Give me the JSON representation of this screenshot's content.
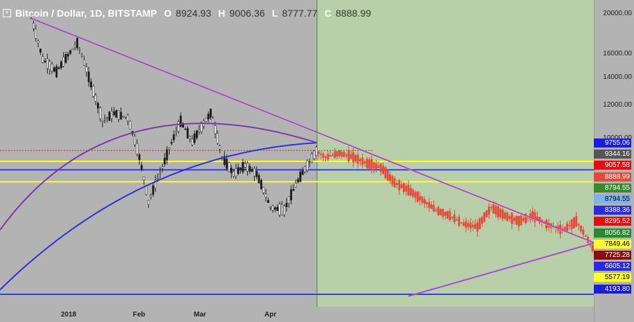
{
  "header": {
    "symbol": "Bitcoin / Dollar, 1D, BITSTAMP",
    "open_label": "O",
    "open": "8924.93",
    "high_label": "H",
    "high": "9006.36",
    "low_label": "L",
    "low": "8777.77",
    "close_label": "C",
    "close": "8888.99"
  },
  "colors": {
    "background": "#b3b3b3",
    "projection_zone": "#b9cfaa",
    "candle": "#e34a3a",
    "yellow": "#ffff33",
    "blue": "#3a3af0",
    "purple": "#a64bd8"
  },
  "chart_data": {
    "type": "line",
    "title": "Bitcoin / Dollar, 1D, BITSTAMP",
    "yscale": "log",
    "ylim": [
      4000,
      22000
    ],
    "x_ticks": [
      "2018",
      "Feb",
      "Mar",
      "Apr"
    ],
    "y_ticks": [
      20000,
      16000,
      14000,
      12000,
      10000
    ],
    "series": [
      {
        "name": "BTCUSD",
        "x": [
          "2017-12-17",
          "2017-12-22",
          "2017-12-28",
          "2018-01-06",
          "2018-01-12",
          "2018-01-17",
          "2018-01-22",
          "2018-01-28",
          "2018-02-02",
          "2018-02-06",
          "2018-02-12",
          "2018-02-20",
          "2018-02-25",
          "2018-03-05",
          "2018-03-10",
          "2018-03-15",
          "2018-03-20",
          "2018-03-25",
          "2018-03-31",
          "2018-04-06",
          "2018-04-12",
          "2018-04-16",
          "2018-04-20",
          "2018-04-24",
          "2018-04-30",
          "2018-05-06",
          "2018-05-12",
          "2018-05-18",
          "2018-05-24",
          "2018-05-30",
          "2018-06-05",
          "2018-06-11",
          "2018-06-17",
          "2018-06-23",
          "2018-06-29",
          "2018-07-05",
          "2018-07-11",
          "2018-07-17",
          "2018-07-23",
          "2018-07-29",
          "2018-08-05",
          "2018-08-11",
          "2018-08-15",
          "2018-08-19",
          "2018-08-24",
          "2018-08-27"
        ],
        "y": [
          19500,
          15500,
          14500,
          17000,
          13500,
          11000,
          11500,
          11200,
          9000,
          7000,
          8500,
          11000,
          9800,
          11500,
          9000,
          8200,
          8600,
          8200,
          6800,
          6700,
          7900,
          8600,
          9300,
          9000,
          9200,
          9000,
          8700,
          8500,
          7800,
          7500,
          7100,
          6700,
          6500,
          6200,
          6100,
          6800,
          6500,
          6300,
          6500,
          6200,
          6000,
          6300,
          5800,
          5300,
          6600,
          5400
        ]
      }
    ],
    "price_labels": [
      {
        "value": "9755.06",
        "bg": "#1c1cdc",
        "fg": "#ffffff"
      },
      {
        "value": "9344.16",
        "bg": "#555555",
        "fg": "#ffffff"
      },
      {
        "value": "9057.58",
        "bg": "#e01010",
        "fg": "#ffffff"
      },
      {
        "value": "8888.99",
        "bg": "#e34a3a",
        "fg": "#ffffff"
      },
      {
        "value": "8794.55",
        "bg": "#3a8a2a",
        "fg": "#ffffff"
      },
      {
        "value": "8794.55",
        "bg": "#7fb3e8",
        "fg": "#000000"
      },
      {
        "value": "8388.36",
        "bg": "#2a2ae0",
        "fg": "#ffffff"
      },
      {
        "value": "8295.52",
        "bg": "#e01010",
        "fg": "#ffffff"
      },
      {
        "value": "8056.82",
        "bg": "#2a8a2a",
        "fg": "#ffffff"
      },
      {
        "value": "7849.46",
        "bg": "#ffff33",
        "fg": "#000000"
      },
      {
        "value": "7725.28",
        "bg": "#8a1010",
        "fg": "#ffffff"
      },
      {
        "value": "6605.12",
        "bg": "#2a2ae0",
        "fg": "#ffffff"
      },
      {
        "value": "5577.19",
        "bg": "#ffff33",
        "fg": "#000000"
      },
      {
        "value": "4193.80",
        "bg": "#1c1cdc",
        "fg": "#ffffff"
      }
    ]
  }
}
